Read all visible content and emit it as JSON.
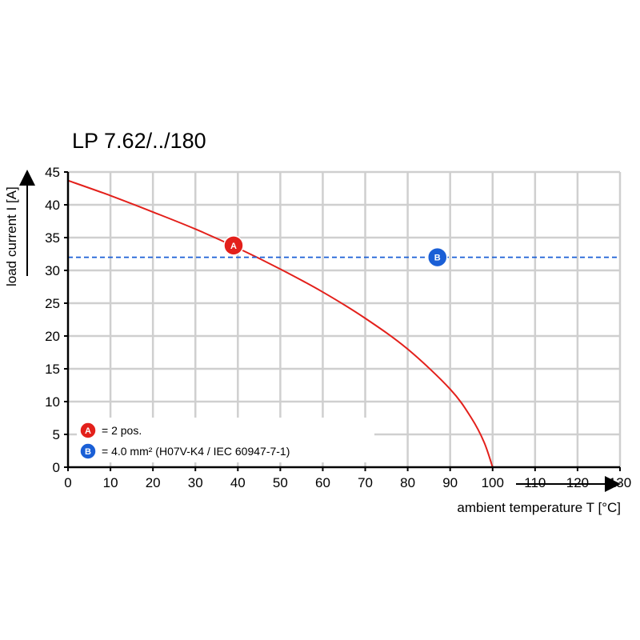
{
  "chart_data": {
    "type": "line",
    "title": "LP 7.62/../180",
    "xlabel": "ambient temperature T [°C]",
    "ylabel": "load current I [A]",
    "xlim": [
      0,
      130
    ],
    "ylim": [
      0,
      45
    ],
    "xticks": [
      0,
      10,
      20,
      30,
      40,
      50,
      60,
      70,
      80,
      90,
      100,
      110,
      120,
      130
    ],
    "yticks": [
      0,
      5,
      10,
      15,
      20,
      25,
      30,
      35,
      40,
      45
    ],
    "grid": true,
    "series": [
      {
        "marker": "A",
        "color": "#e3201b",
        "style": "solid",
        "x": [
          0,
          10,
          20,
          30,
          40,
          50,
          60,
          70,
          80,
          90,
          95,
          98,
          100
        ],
        "y": [
          43.7,
          41.4,
          38.9,
          36.3,
          33.4,
          30.2,
          26.7,
          22.7,
          18.0,
          11.9,
          7.5,
          3.8,
          0
        ]
      },
      {
        "marker": "B",
        "color": "#1a5fd6",
        "style": "dashed",
        "x": [
          0,
          130
        ],
        "y": [
          32,
          32
        ]
      }
    ],
    "markers": [
      {
        "letter": "A",
        "color": "#e3201b",
        "x": 39,
        "y": 33.8
      },
      {
        "letter": "B",
        "color": "#1a5fd6",
        "x": 87,
        "y": 32
      }
    ],
    "legend": {
      "position": "bottom-left",
      "items": [
        {
          "letter": "A",
          "color": "#e3201b",
          "text": "= 2 pos."
        },
        {
          "letter": "B",
          "color": "#1a5fd6",
          "text": "= 4.0 mm² (H07V-K4 / IEC 60947-7-1)"
        }
      ]
    }
  }
}
